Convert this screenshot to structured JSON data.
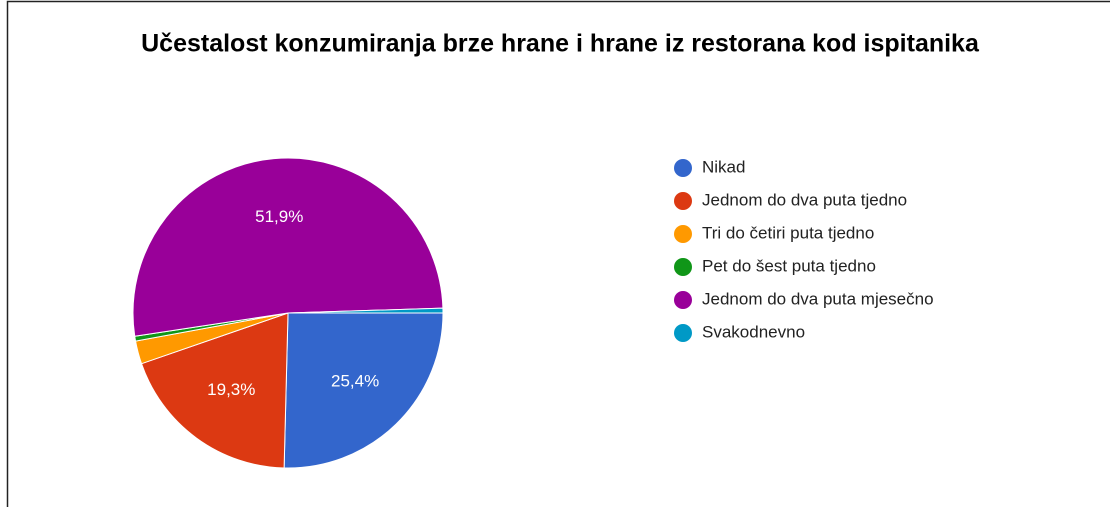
{
  "chart_data": {
    "type": "pie",
    "title": "Učestalost konzumiranja brze hrane i hrane iz restorana kod ispitanika",
    "categories": [
      "Nikad",
      "Jednom do dva puta tjedno",
      "Tri do četiri puta tjedno",
      "Pet do šest puta tjedno",
      "Jednom do dva puta mjesečno",
      "Svakodnevno"
    ],
    "values": [
      25.4,
      19.3,
      2.4,
      0.5,
      51.9,
      0.5
    ],
    "value_labels": [
      "25,4%",
      "19,3%",
      null,
      null,
      "51,9%",
      null
    ],
    "colors": [
      "#3366cc",
      "#dc3912",
      "#ff9900",
      "#109618",
      "#990099",
      "#0099c6"
    ],
    "legend": "right"
  }
}
